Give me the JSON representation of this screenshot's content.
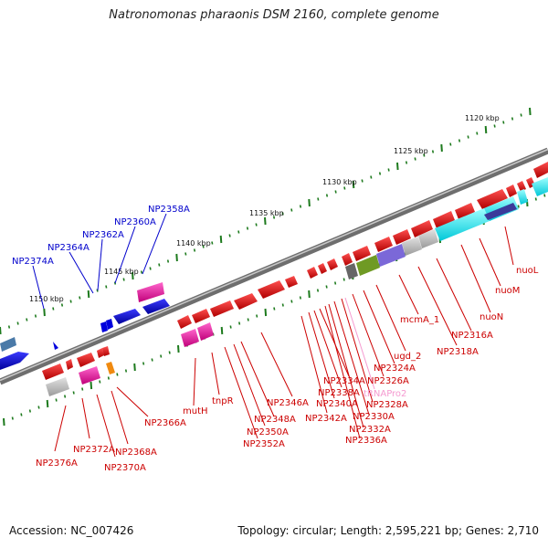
{
  "title": "Natronomonas pharaonis DSM 2160, complete genome",
  "footer": {
    "accession": "Accession: NC_007426",
    "summary": "Topology: circular; Length: 2,595,221 bp; Genes: 2,710"
  },
  "colors": {
    "backbone": "#8a8a8a",
    "tick": "#1d7a1d",
    "label_red": "#cc0000",
    "label_blue": "#0000cc",
    "label_pink": "#f59ad0"
  },
  "scale_ticks": [
    "1120 kbp",
    "1125 kbp",
    "1130 kbp",
    "1135 kbp",
    "1140 kbp",
    "1145 kbp",
    "1150 kbp"
  ],
  "labels_blue": [
    "NP2358A",
    "NP2360A",
    "NP2362A",
    "NP2364A",
    "NP2374A"
  ],
  "labels_red": [
    "nuoL",
    "nuoM",
    "nuoN",
    "NP2316A",
    "NP2318A",
    "mcmA_1",
    "ugd_2",
    "NP2324A",
    "NP2326A",
    "NP2328A",
    "NP2330A",
    "NP2332A",
    "NP2334A",
    "NP2336A",
    "NP2338A",
    "NP2340A",
    "NP2342A",
    "NP2346A",
    "NP2348A",
    "NP2350A",
    "NP2352A",
    "tnpR",
    "mutH",
    "NP2366A",
    "NP2368A",
    "NP2370A",
    "NP2372A",
    "NP2376A"
  ],
  "labels_pink": [
    "tRNAPro2"
  ]
}
